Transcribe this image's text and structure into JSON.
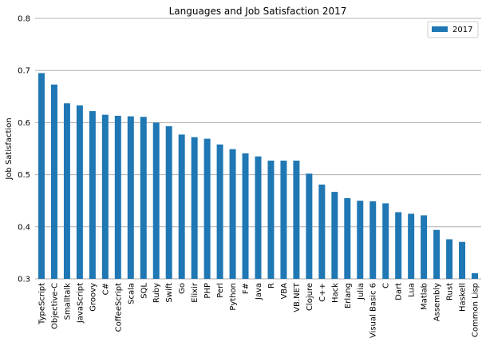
{
  "chart_data": {
    "type": "bar",
    "title": "Languages and Job Satisfaction 2017",
    "xlabel": "",
    "ylabel": "Job Satisfaction",
    "ylim": [
      0.3,
      0.8
    ],
    "yticks": [
      "0.3",
      "0.4",
      "0.5",
      "0.6",
      "0.7",
      "0.8"
    ],
    "grid": "horizontal",
    "legend_position": "top-right",
    "colors": {
      "bar": "#1f77b4",
      "grid": "#b0b0b0"
    },
    "categories": [
      "TypeScript",
      "Objective-C",
      "Smalltalk",
      "JavaScript",
      "Groovy",
      "C#",
      "CoffeeScript",
      "Scala",
      "SQL",
      "Ruby",
      "Swift",
      "Go",
      "Elixir",
      "PHP",
      "Perl",
      "Python",
      "F#",
      "Java",
      "R",
      "VBA",
      "VB.NET",
      "Clojure",
      "C++",
      "Hack",
      "Erlang",
      "Julia",
      "Visual Basic 6",
      "C",
      "Dart",
      "Lua",
      "Matlab",
      "Assembly",
      "Rust",
      "Haskell",
      "Common Lisp"
    ],
    "series": [
      {
        "name": "2017",
        "values": [
          0.695,
          0.673,
          0.637,
          0.633,
          0.622,
          0.615,
          0.613,
          0.612,
          0.611,
          0.6,
          0.593,
          0.577,
          0.572,
          0.569,
          0.558,
          0.549,
          0.541,
          0.535,
          0.527,
          0.527,
          0.527,
          0.502,
          0.481,
          0.467,
          0.455,
          0.45,
          0.449,
          0.445,
          0.428,
          0.425,
          0.422,
          0.394,
          0.376,
          0.371,
          0.311
        ]
      }
    ]
  }
}
